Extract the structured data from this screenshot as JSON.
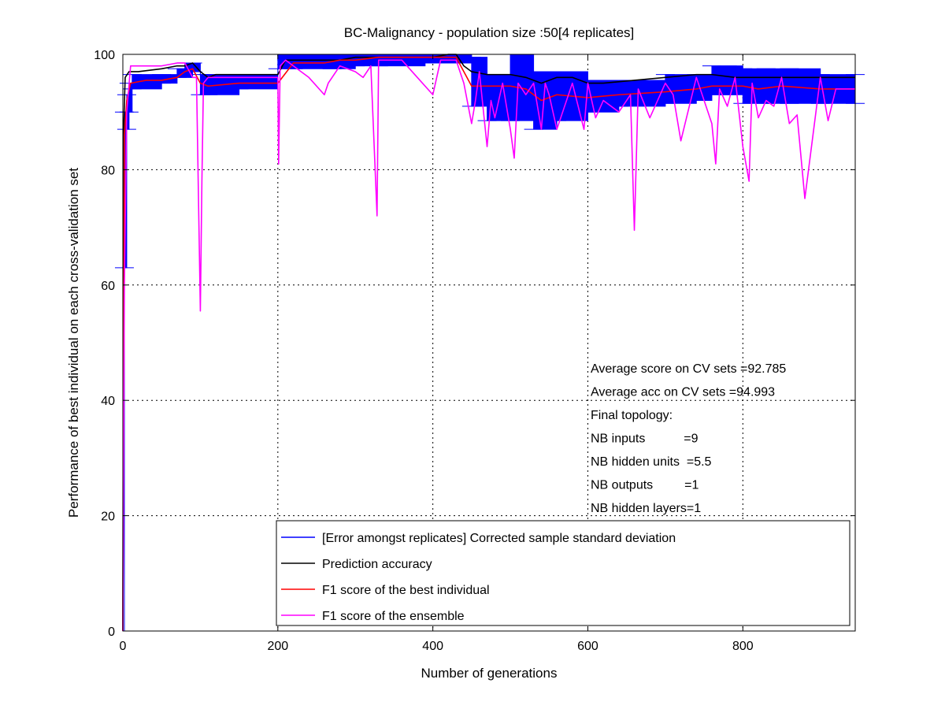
{
  "chart_data": {
    "type": "line",
    "title": "BC-Malignancy - population size :50[4 replicates]",
    "xlabel": "Number of generations",
    "ylabel": "Performance of best individual on each cross-validation set",
    "xlim": [
      0,
      945
    ],
    "ylim": [
      0,
      100
    ],
    "xticks": [
      0,
      200,
      400,
      600,
      800
    ],
    "yticks": [
      0,
      20,
      40,
      60,
      80,
      100
    ],
    "grid": true,
    "legend_position": "bottom-right",
    "annotations": [
      "Average score on CV sets =92.785",
      "Average acc on CV sets =94.993",
      "Final topology:",
      "NB inputs           =9",
      "NB hidden units  =5.5",
      "NB outputs         =1",
      "NB hidden layers=1"
    ],
    "series": [
      {
        "name": "[Error amongst replicates] Corrected sample standard deviation",
        "color": "#0000ff",
        "style": "error-band",
        "x": [
          0,
          2,
          5,
          8,
          12,
          50,
          70,
          80,
          90,
          100,
          110,
          150,
          200,
          220,
          270,
          300,
          330,
          390,
          430,
          450,
          470,
          500,
          530,
          560,
          600,
          640,
          700,
          740,
          760,
          780,
          800,
          830,
          860,
          900,
          945
        ],
        "lo": [
          0,
          63,
          87,
          90,
          94,
          95,
          96,
          96,
          97,
          93,
          93,
          94,
          97.5,
          97.5,
          97.5,
          98,
          98,
          98.5,
          98.5,
          91,
          88.5,
          88.5,
          87,
          88.5,
          90,
          91,
          91.5,
          92,
          93,
          93,
          91.5,
          91.5,
          91.5,
          91.5,
          91.5
        ],
        "hi": [
          0,
          90,
          93,
          95,
          96.5,
          96.5,
          97.5,
          98.5,
          98.5,
          96.5,
          96.5,
          96.5,
          100,
          100,
          100,
          100,
          100,
          100,
          100,
          99.5,
          96.5,
          100,
          97,
          97,
          95.5,
          95.5,
          96.5,
          96.5,
          98,
          98,
          97.5,
          97.5,
          97.5,
          96.5,
          96.5
        ]
      },
      {
        "name": "Prediction accuracy",
        "color": "#000000",
        "x": [
          0,
          1,
          3,
          8,
          20,
          50,
          70,
          80,
          90,
          100,
          110,
          120,
          150,
          200,
          210,
          230,
          260,
          280,
          300,
          330,
          360,
          400,
          420,
          430,
          440,
          450,
          470,
          500,
          520,
          540,
          560,
          580,
          600,
          620,
          660,
          700,
          740,
          760,
          790,
          820,
          860,
          900,
          945
        ],
        "y": [
          0,
          87,
          96,
          97,
          97,
          97.5,
          98,
          98,
          98.5,
          97,
          96,
          96.5,
          96.5,
          96.5,
          99,
          99,
          99,
          99,
          99.5,
          99.5,
          99.5,
          99.5,
          100,
          100,
          98,
          97,
          96.5,
          96.5,
          96,
          95,
          96,
          96,
          95,
          95,
          95.5,
          96,
          96.5,
          96.5,
          96,
          96,
          96,
          96,
          96
        ]
      },
      {
        "name": "F1 score of the best individual",
        "color": "#ff0000",
        "x": [
          0,
          2,
          5,
          10,
          30,
          50,
          70,
          80,
          90,
          100,
          110,
          150,
          200,
          220,
          260,
          280,
          300,
          330,
          360,
          400,
          430,
          440,
          450,
          470,
          500,
          520,
          540,
          560,
          600,
          640,
          700,
          740,
          760,
          800,
          820,
          850,
          900,
          945
        ],
        "y": [
          0,
          86,
          92,
          95,
          95.5,
          95.5,
          96,
          97,
          97.5,
          95,
          94.5,
          95,
          95,
          98.5,
          98.5,
          99,
          99,
          99.5,
          99.5,
          99.5,
          99.5,
          97,
          94.5,
          94.5,
          94.5,
          94,
          92,
          93,
          92.5,
          93,
          93.5,
          94,
          94.5,
          94.5,
          94,
          94.5,
          94,
          94
        ]
      },
      {
        "name": "F1 score of the ensemble",
        "color": "#ff00ff",
        "x": [
          0,
          2,
          5,
          10,
          50,
          70,
          80,
          90,
          95,
          100,
          102,
          104,
          110,
          150,
          200,
          201,
          203,
          210,
          230,
          240,
          260,
          265,
          270,
          280,
          300,
          310,
          320,
          328,
          330,
          332,
          340,
          360,
          380,
          400,
          410,
          430,
          440,
          450,
          455,
          460,
          470,
          475,
          480,
          490,
          500,
          505,
          510,
          520,
          530,
          540,
          545,
          550,
          560,
          580,
          595,
          600,
          610,
          620,
          640,
          655,
          660,
          665,
          680,
          700,
          710,
          720,
          740,
          760,
          765,
          770,
          780,
          790,
          800,
          808,
          812,
          820,
          830,
          840,
          850,
          860,
          870,
          880,
          900,
          910,
          920,
          945
        ],
        "y": [
          0,
          60,
          90,
          98,
          98,
          98.5,
          98.5,
          96,
          96,
          55.5,
          78,
          95,
          96,
          96,
          96,
          81,
          98,
          99,
          97,
          96,
          93,
          95,
          96,
          98,
          97,
          96,
          98,
          72,
          99,
          99,
          99,
          99,
          96,
          93,
          99,
          99,
          95,
          88,
          92,
          97,
          84,
          92,
          89,
          95,
          87,
          82,
          95,
          93,
          95,
          87,
          95,
          93,
          87,
          95,
          87,
          95,
          89,
          92,
          90,
          93,
          69.5,
          94,
          89,
          95,
          93,
          85,
          96,
          88,
          81,
          94,
          91,
          96,
          84,
          78,
          95,
          89,
          92,
          91,
          96,
          88,
          89.5,
          75,
          96,
          88.5,
          94,
          94
        ]
      }
    ]
  }
}
